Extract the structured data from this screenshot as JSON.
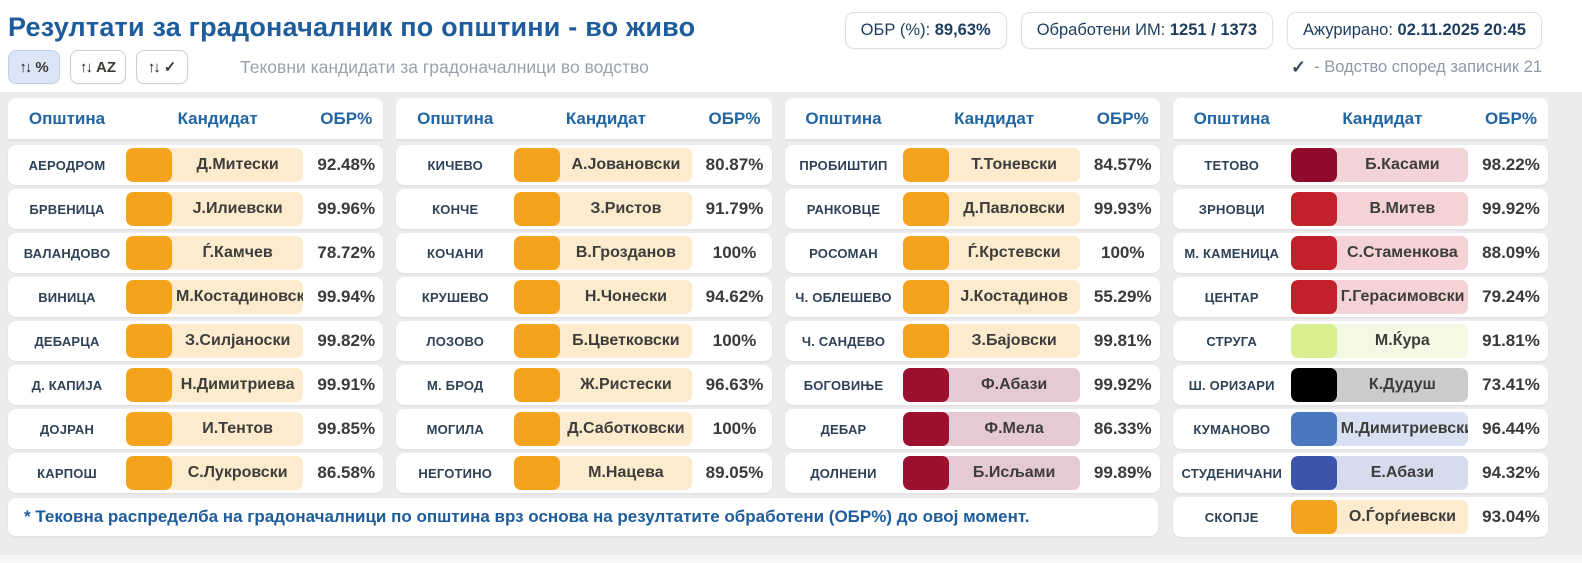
{
  "header": {
    "title": "Резултати за градоначалник по општини - во живо",
    "badges": [
      {
        "label": "ОБР (%): ",
        "value": "89,63%"
      },
      {
        "label": "Обработени ИМ: ",
        "value": "1251 / 1373"
      },
      {
        "label": "Ажурирано: ",
        "value": "02.11.2025 20:45"
      }
    ],
    "sort_buttons": [
      {
        "arrows": "↑↓",
        "label": "%",
        "active": true
      },
      {
        "arrows": "↑↓",
        "label": "AZ",
        "active": false
      },
      {
        "arrows": "↑↓",
        "label": "✓",
        "active": false
      }
    ],
    "subtitle": "Тековни кандидати за градоначалници во водство",
    "legend": {
      "check": "✓",
      "text": "- Водство според записник 21"
    }
  },
  "table": {
    "headers": [
      "Општина",
      "Кандидат",
      "ОБР%"
    ],
    "palette": {
      "orange": {
        "box": "#F5A21C",
        "bg": "#FCEBCD"
      },
      "darkred1": {
        "box": "#8F0B29",
        "bg": "#F2D4D8"
      },
      "darkred2": {
        "box": "#9C102F",
        "bg": "#E5C9D4"
      },
      "red": {
        "box": "#C2202A",
        "bg": "#F5D2D5"
      },
      "lime": {
        "box": "#D9EE8E",
        "bg": "#F3F9E3"
      },
      "black": {
        "box": "#000000",
        "bg": "#CBCBCB"
      },
      "blue": {
        "box": "#4A77BE",
        "bg": "#D8E1F1"
      },
      "indigo": {
        "box": "#3B55AB",
        "bg": "#D6DBEE"
      }
    },
    "columns": [
      [
        {
          "m": "АЕРОДРОМ",
          "n": "Д.Митески",
          "p": "92.48%",
          "c": "orange"
        },
        {
          "m": "БРВЕНИЦА",
          "n": "Ј.Илиевски",
          "p": "99.96%",
          "c": "orange"
        },
        {
          "m": "ВАЛАНДОВО",
          "n": "Ѓ.Камчев",
          "p": "78.72%",
          "c": "orange"
        },
        {
          "m": "ВИНИЦА",
          "n": "М.Костадиновски",
          "p": "99.94%",
          "c": "orange"
        },
        {
          "m": "ДЕБАРЦА",
          "n": "З.Силјаноски",
          "p": "99.82%",
          "c": "orange"
        },
        {
          "m": "Д. КАПИЈА",
          "n": "Н.Димитриева",
          "p": "99.91%",
          "c": "orange"
        },
        {
          "m": "ДОЈРАН",
          "n": "И.Тентов",
          "p": "99.85%",
          "c": "orange"
        },
        {
          "m": "КАРПОШ",
          "n": "С.Лукровски",
          "p": "86.58%",
          "c": "orange"
        }
      ],
      [
        {
          "m": "КИЧЕВО",
          "n": "А.Јовановски",
          "p": "80.87%",
          "c": "orange"
        },
        {
          "m": "КОНЧЕ",
          "n": "З.Ристов",
          "p": "91.79%",
          "c": "orange"
        },
        {
          "m": "КОЧАНИ",
          "n": "В.Грозданов",
          "p": "100%",
          "c": "orange"
        },
        {
          "m": "КРУШЕВО",
          "n": "Н.Чонески",
          "p": "94.62%",
          "c": "orange"
        },
        {
          "m": "ЛОЗОВО",
          "n": "Б.Цветковски",
          "p": "100%",
          "c": "orange"
        },
        {
          "m": "М. БРОД",
          "n": "Ж.Ристески",
          "p": "96.63%",
          "c": "orange"
        },
        {
          "m": "МОГИЛА",
          "n": "Д.Саботковски",
          "p": "100%",
          "c": "orange"
        },
        {
          "m": "НЕГОТИНО",
          "n": "М.Нацева",
          "p": "89.05%",
          "c": "orange"
        }
      ],
      [
        {
          "m": "ПРОБИШТИП",
          "n": "Т.Тоневски",
          "p": "84.57%",
          "c": "orange"
        },
        {
          "m": "РАНКОВЦЕ",
          "n": "Д.Павловски",
          "p": "99.93%",
          "c": "orange"
        },
        {
          "m": "РОСОМАН",
          "n": "Ѓ.Крстевски",
          "p": "100%",
          "c": "orange"
        },
        {
          "m": "Ч. ОБЛЕШЕВО",
          "n": "Ј.Костадинов",
          "p": "55.29%",
          "c": "orange"
        },
        {
          "m": "Ч. САНДЕВО",
          "n": "З.Бајовски",
          "p": "99.81%",
          "c": "orange"
        },
        {
          "m": "БОГОВИЊЕ",
          "n": "Ф.Абази",
          "p": "99.92%",
          "c": "darkred2"
        },
        {
          "m": "ДЕБАР",
          "n": "Ф.Мела",
          "p": "86.33%",
          "c": "darkred2"
        },
        {
          "m": "ДОЛНЕНИ",
          "n": "Б.Исљами",
          "p": "99.89%",
          "c": "darkred2"
        }
      ],
      [
        {
          "m": "ТЕТОВО",
          "n": "Б.Касами",
          "p": "98.22%",
          "c": "darkred1"
        },
        {
          "m": "ЗРНОВЦИ",
          "n": "В.Митев",
          "p": "99.92%",
          "c": "red"
        },
        {
          "m": "М. КАМЕНИЦА",
          "n": "С.Стаменкова",
          "p": "88.09%",
          "c": "red"
        },
        {
          "m": "ЦЕНТАР",
          "n": "Г.Герасимовски",
          "p": "79.24%",
          "c": "red"
        },
        {
          "m": "СТРУГА",
          "n": "М.Ќура",
          "p": "91.81%",
          "c": "lime"
        },
        {
          "m": "Ш. ОРИЗАРИ",
          "n": "К.Дудуш",
          "p": "73.41%",
          "c": "black"
        },
        {
          "m": "КУМАНОВО",
          "n": "М.Димитриевски",
          "p": "96.44%",
          "c": "blue"
        },
        {
          "m": "СТУДЕНИЧАНИ",
          "n": "Е.Абази",
          "p": "94.32%",
          "c": "indigo"
        },
        {
          "m": "СКОПЈЕ",
          "n": "О.Ѓорѓиевски",
          "p": "93.04%",
          "c": "orange"
        }
      ]
    ]
  },
  "footnote": "* Тековна распределба на градоначалници по општина врз основа на резултатите обработени (ОБР%) до овој момент."
}
